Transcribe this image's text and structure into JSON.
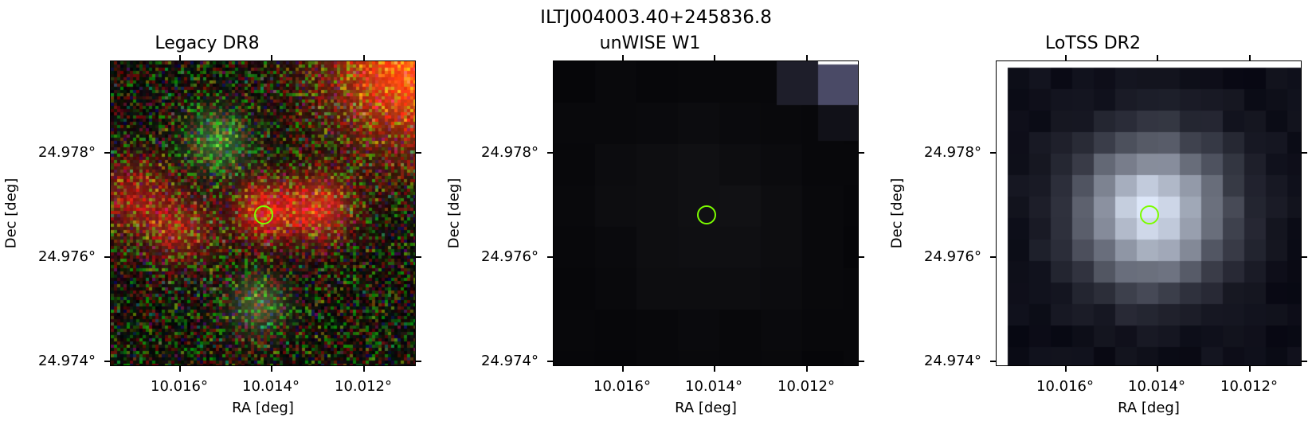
{
  "figure": {
    "title": "ILTJ004003.40+245836.8"
  },
  "panels": [
    {
      "title": "Legacy DR8",
      "style": "rgb-noise"
    },
    {
      "title": "unWISE W1",
      "style": "dark-blocks"
    },
    {
      "title": "LoTSS DR2",
      "style": "bright-blob"
    }
  ],
  "axes": {
    "xlabel": "RA [deg]",
    "ylabel": "Dec [deg]",
    "xticks": [
      "10.016°",
      "10.014°",
      "10.012°"
    ],
    "yticks": [
      "24.978°",
      "24.976°",
      "24.974°"
    ]
  },
  "colors": {
    "marker": "#7cfc00"
  }
}
